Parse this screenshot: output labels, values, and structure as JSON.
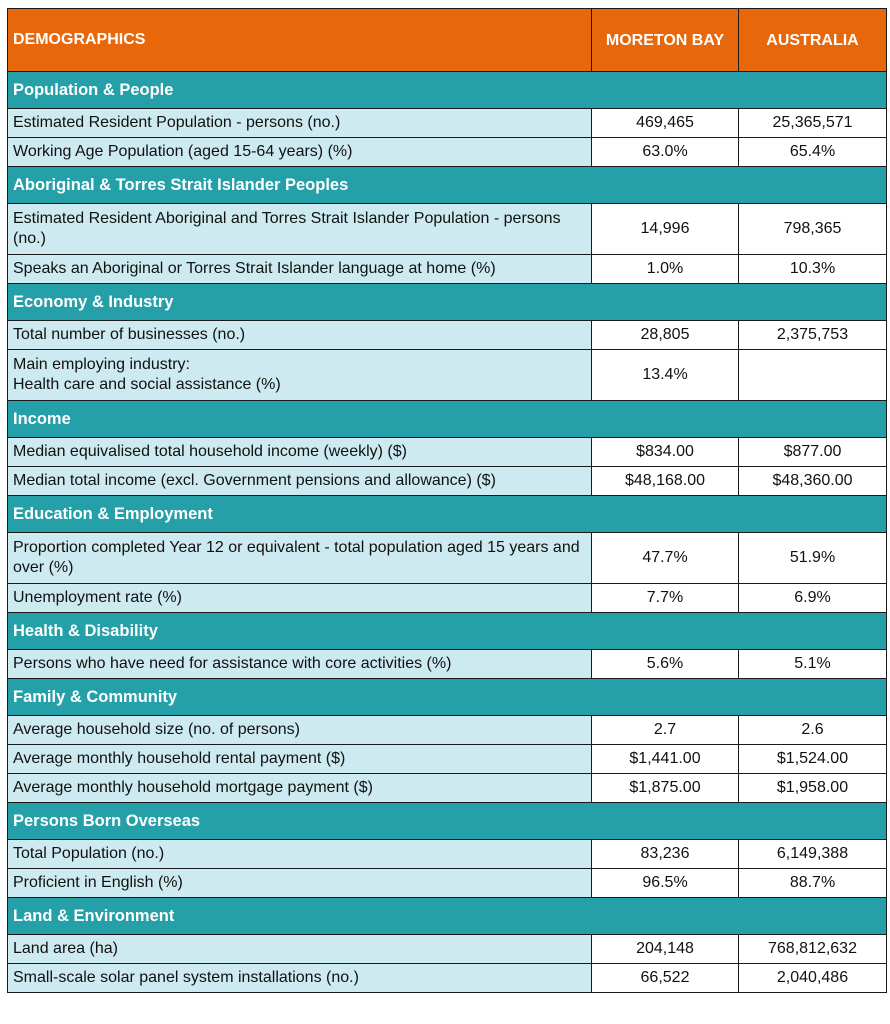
{
  "header": {
    "title": "DEMOGRAPHICS",
    "col1": "MORETON BAY",
    "col2": "AUSTRALIA"
  },
  "colors": {
    "header": "#E8670A",
    "section": "#259FA8",
    "label_cell": "#CDEAF0"
  },
  "sections": [
    {
      "title": "Population & People",
      "rows": [
        {
          "label": "Estimated Resident Population - persons (no.)",
          "moreton_bay": "469,465",
          "australia": "25,365,571"
        },
        {
          "label": "Working Age Population (aged 15-64 years) (%)",
          "moreton_bay": "63.0%",
          "australia": "65.4%"
        }
      ]
    },
    {
      "title": "Aboriginal & Torres Strait Islander Peoples",
      "rows": [
        {
          "label": "Estimated Resident Aboriginal and Torres Strait Islander Population - persons (no.)",
          "moreton_bay": "14,996",
          "australia": "798,365",
          "two": true
        },
        {
          "label": "Speaks an Aboriginal or Torres Strait Islander language at home (%)",
          "moreton_bay": "1.0%",
          "australia": "10.3%"
        }
      ]
    },
    {
      "title": "Economy & Industry",
      "rows": [
        {
          "label": "Total number of businesses (no.)",
          "moreton_bay": "28,805",
          "australia": "2,375,753"
        },
        {
          "label": "Main employing industry:\nHealth care and social assistance (%)",
          "moreton_bay": "13.4%",
          "australia": "",
          "two": true
        }
      ]
    },
    {
      "title": "Income",
      "rows": [
        {
          "label": "Median equivalised total household income (weekly) ($)",
          "moreton_bay": "$834.00",
          "australia": "$877.00"
        },
        {
          "label": "Median total income (excl. Government pensions and allowance) ($)",
          "moreton_bay": "$48,168.00",
          "australia": "$48,360.00"
        }
      ]
    },
    {
      "title": "Education & Employment",
      "rows": [
        {
          "label": "Proportion completed Year 12 or equivalent - total population aged 15 years and over (%)",
          "moreton_bay": "47.7%",
          "australia": "51.9%",
          "two": true
        },
        {
          "label": "Unemployment rate (%)",
          "moreton_bay": "7.7%",
          "australia": "6.9%"
        }
      ]
    },
    {
      "title": "Health & Disability",
      "rows": [
        {
          "label": "Persons who have need for assistance with core activities (%)",
          "moreton_bay": "5.6%",
          "australia": "5.1%"
        }
      ]
    },
    {
      "title": "Family & Community",
      "rows": [
        {
          "label": "Average household size (no. of persons)",
          "moreton_bay": "2.7",
          "australia": "2.6"
        },
        {
          "label": "Average monthly household rental payment ($)",
          "moreton_bay": "$1,441.00",
          "australia": "$1,524.00"
        },
        {
          "label": "Average monthly household mortgage payment ($)",
          "moreton_bay": "$1,875.00",
          "australia": "$1,958.00"
        }
      ]
    },
    {
      "title": "Persons Born Overseas",
      "rows": [
        {
          "label": "Total Population (no.)",
          "moreton_bay": "83,236",
          "australia": "6,149,388"
        },
        {
          "label": "Proficient in English (%)",
          "moreton_bay": "96.5%",
          "australia": "88.7%"
        }
      ]
    },
    {
      "title": "Land & Environment",
      "rows": [
        {
          "label": "Land area (ha)",
          "moreton_bay": "204,148",
          "australia": "768,812,632"
        },
        {
          "label": "Small-scale solar panel system installations (no.)",
          "moreton_bay": "66,522",
          "australia": "2,040,486"
        }
      ]
    }
  ]
}
